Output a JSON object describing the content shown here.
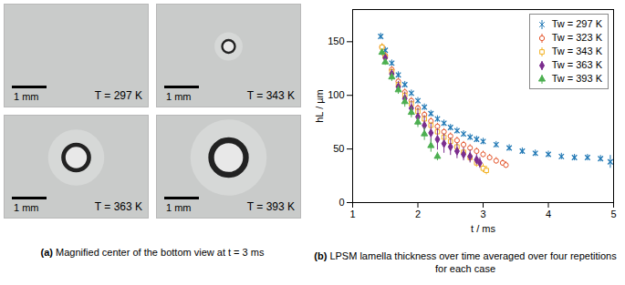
{
  "panel_a": {
    "caption_label": "(a)",
    "caption": "Magnified center of the bottom view at t = 3 ms",
    "images": [
      {
        "label": "T = 297 K",
        "scale_bar": "1 mm"
      },
      {
        "label": "T = 343 K",
        "scale_bar": "1 mm"
      },
      {
        "label": "T = 363 K",
        "scale_bar": "1 mm"
      },
      {
        "label": "T = 393 K",
        "scale_bar": "1 mm"
      }
    ]
  },
  "chart_data": {
    "type": "scatter",
    "caption_label": "(b)",
    "caption": "LPSM lamella thickness over time averaged over four repetitions for each case",
    "x_label": "t / ms",
    "y_label": "hL / µm",
    "xlim": [
      1,
      5
    ],
    "xticks": [
      1,
      2,
      3,
      4,
      5
    ],
    "ylim": [
      0,
      180
    ],
    "yticks": [
      0,
      50,
      100,
      150
    ],
    "grid": false,
    "legend": "top-right",
    "series": [
      {
        "name": "Tw = 297 K",
        "color": "#1f77b4",
        "marker": "x",
        "x": [
          1.43,
          1.5,
          1.6,
          1.7,
          1.8,
          1.9,
          2.0,
          2.1,
          2.2,
          2.3,
          2.4,
          2.5,
          2.6,
          2.7,
          2.8,
          2.9,
          3.0,
          3.2,
          3.4,
          3.6,
          3.8,
          4.0,
          4.2,
          4.4,
          4.6,
          4.8,
          4.95
        ],
        "values": [
          155,
          142,
          130,
          119,
          110,
          102,
          95,
          89,
          83,
          78,
          74,
          70,
          67,
          64,
          61,
          59,
          57,
          54,
          51,
          48,
          46,
          45,
          43,
          42,
          42,
          41,
          38
        ],
        "errors": [
          3,
          3,
          3,
          3,
          3,
          3,
          3,
          3,
          3,
          3,
          3,
          3,
          3,
          3,
          3,
          3,
          3,
          3,
          3,
          3,
          3,
          3,
          3,
          3,
          3,
          3,
          6
        ]
      },
      {
        "name": "Tw = 323 K",
        "color": "#e4572e",
        "marker": "circle",
        "x": [
          1.45,
          1.5,
          1.6,
          1.7,
          1.8,
          1.9,
          2.0,
          2.1,
          2.2,
          2.3,
          2.4,
          2.5,
          2.6,
          2.7,
          2.8,
          2.9,
          3.0,
          3.1,
          3.2,
          3.3,
          3.35
        ],
        "values": [
          145,
          137,
          124,
          113,
          103,
          95,
          88,
          82,
          76,
          71,
          66,
          62,
          58,
          54,
          51,
          48,
          45,
          42,
          39,
          37,
          35
        ],
        "errors": [
          3,
          3,
          3,
          3,
          3,
          3,
          3,
          3,
          3,
          3,
          3,
          3,
          3,
          3,
          3,
          3,
          3,
          3,
          3,
          3,
          3
        ]
      },
      {
        "name": "Tw = 343 K",
        "color": "#f2b01e",
        "marker": "square",
        "x": [
          1.45,
          1.5,
          1.6,
          1.7,
          1.8,
          1.9,
          2.0,
          2.1,
          2.2,
          2.3,
          2.4,
          2.5,
          2.6,
          2.7,
          2.8,
          2.9,
          3.0,
          3.05
        ],
        "values": [
          145,
          136,
          122,
          110,
          100,
          92,
          85,
          78,
          72,
          66,
          61,
          57,
          52,
          47,
          42,
          37,
          32,
          30
        ],
        "errors": [
          3,
          3,
          3,
          3,
          3,
          3,
          3,
          3,
          3,
          3,
          3,
          3,
          3,
          3,
          4,
          4,
          4,
          4
        ]
      },
      {
        "name": "Tw = 363 K",
        "color": "#7b2d8e",
        "marker": "diamond",
        "x": [
          1.5,
          1.6,
          1.7,
          1.8,
          1.9,
          2.0,
          2.1,
          2.2,
          2.3,
          2.4,
          2.5,
          2.6,
          2.7,
          2.8,
          2.9,
          2.95
        ],
        "values": [
          135,
          120,
          108,
          97,
          88,
          80,
          72,
          65,
          59,
          55,
          52,
          48,
          45,
          43,
          40,
          37
        ],
        "errors": [
          3,
          4,
          5,
          6,
          7,
          8,
          9,
          9,
          10,
          9,
          8,
          7,
          6,
          6,
          5,
          5
        ]
      },
      {
        "name": "Tw = 393 K",
        "color": "#4caf50",
        "marker": "triangle",
        "x": [
          1.45,
          1.5,
          1.6,
          1.7,
          1.8,
          1.9,
          2.0,
          2.1,
          2.2,
          2.3
        ],
        "values": [
          140,
          131,
          117,
          105,
          94,
          84,
          75,
          64,
          53,
          43
        ],
        "errors": [
          3,
          3,
          4,
          4,
          5,
          5,
          5,
          6,
          6,
          4
        ]
      }
    ]
  }
}
